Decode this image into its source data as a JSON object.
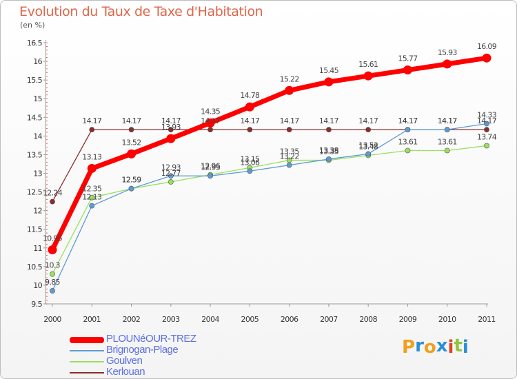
{
  "title": "Evolution du Taux de Taxe d'Habitation",
  "unit_label": "(en %)",
  "brand": {
    "text": "Proxiti",
    "letters": [
      "P",
      "r",
      "o",
      "x",
      "i",
      "t",
      "i"
    ],
    "colors": [
      "#f0a020",
      "#2a8fd6",
      "#f0a020",
      "#2a8fd6",
      "#e0421e",
      "#8cc63e",
      "#2a8fd6"
    ]
  },
  "chart_data": {
    "type": "line",
    "title": "Evolution du Taux de Taxe d'Habitation",
    "ylabel": "(en %)",
    "xlabel": "",
    "x": [
      "2000",
      "2001",
      "2002",
      "2003",
      "2004",
      "2005",
      "2006",
      "2007",
      "2008",
      "2009",
      "2010",
      "2011"
    ],
    "ylim": [
      9.5,
      16.5
    ],
    "yticks": [
      "9.5",
      "10",
      "10.5",
      "11",
      "11.5",
      "12",
      "12.5",
      "13",
      "13.5",
      "14",
      "14.5",
      "15",
      "15.5",
      "16",
      "16.5"
    ],
    "grid": false,
    "legend_position": "bottom-left",
    "series": [
      {
        "name": "PLOUNéOUR-TREZ",
        "color": "#ff0000",
        "values": [
          10.95,
          13.13,
          13.52,
          13.93,
          14.35,
          14.78,
          15.22,
          15.45,
          15.61,
          15.77,
          15.93,
          16.09
        ],
        "labels": [
          "10.95",
          "13.13",
          "13.52",
          "13.93",
          "14.35",
          "14.78",
          "15.22",
          "15.45",
          "15.61",
          "15.77",
          "15.93",
          "16.09"
        ]
      },
      {
        "name": "Brignogan-Plage",
        "color": "#5b9bd5",
        "values": [
          9.85,
          12.13,
          12.59,
          12.93,
          12.93,
          13.06,
          13.22,
          13.38,
          13.52,
          14.17,
          14.17,
          14.33
        ],
        "labels": [
          "9.85",
          "12.13",
          "12.59",
          "12.93",
          "12.93",
          "13.06",
          "13.22",
          "13.38",
          "13.52",
          "14.17",
          "14.17",
          "14.33"
        ]
      },
      {
        "name": "Goulven",
        "color": "#99e05e",
        "values": [
          10.3,
          12.35,
          12.59,
          12.77,
          12.96,
          13.15,
          13.35,
          13.35,
          13.48,
          13.61,
          13.61,
          13.74
        ],
        "labels": [
          "10.3",
          "12.35",
          "12.59",
          "12.77",
          "12.96",
          "13.15",
          "13.35",
          "13.35",
          "13.48",
          "13.61",
          "13.61",
          "13.74"
        ]
      },
      {
        "name": "Kerlouan",
        "color": "#8b2c2c",
        "values": [
          12.24,
          14.17,
          14.17,
          14.17,
          14.17,
          14.17,
          14.17,
          14.17,
          14.17,
          14.17,
          14.17,
          14.17
        ],
        "labels": [
          "12.24",
          "14.17",
          "14.17",
          "14.17",
          "14.17",
          "14.17",
          "14.17",
          "14.17",
          "14.17",
          "14.17",
          "14.17",
          "14.17"
        ]
      }
    ]
  }
}
